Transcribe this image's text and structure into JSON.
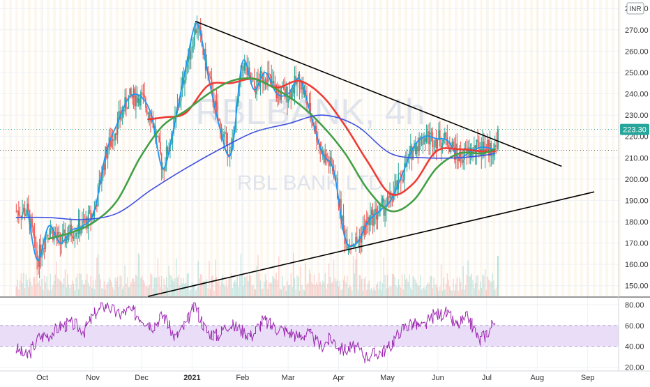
{
  "watermark": {
    "symbol": "RBLBANK, 4h",
    "name": "RBL BANK LTD"
  },
  "currency_badge": "INR",
  "colors": {
    "up": "#26a69a",
    "down": "#ef5350",
    "ma_fast": "#2196f3",
    "ma_mid": "#ef3b36",
    "ma_slow": "#43a047",
    "ma_long": "#3f51e0",
    "trendline": "#000000",
    "rsi_line": "#9c27b0",
    "rsi_band": "#e9ddf7",
    "last_price_bg": "#26a69a",
    "grid": "#eef1f5"
  },
  "chart_data": [
    {
      "type": "line",
      "title": "",
      "y_ticks": [
        "150.00",
        "160.00",
        "170.00",
        "180.00",
        "190.00",
        "200.00",
        "210.00",
        "220.00",
        "230.00",
        "240.00",
        "250.00",
        "260.00",
        "270.00",
        "280.00"
      ],
      "ylim": [
        145,
        284
      ],
      "x_ticks": [
        "Oct",
        "Nov",
        "Dec",
        "2021",
        "Feb",
        "Mar",
        "Apr",
        "May",
        "Jun",
        "Jul",
        "Aug",
        "Sep"
      ],
      "last_price_label": "223.30",
      "last_price": 223.3,
      "dotted_level": 213.5,
      "series": [
        {
          "key": "ma_fast",
          "color": "#2196f3",
          "x": [
            "2020-09-22",
            "2020-09-28",
            "2020-10-05",
            "2020-10-12",
            "2020-10-19",
            "2020-10-26",
            "2020-11-02",
            "2020-11-09",
            "2020-11-16",
            "2020-11-23",
            "2020-11-30",
            "2020-12-07",
            "2020-12-14",
            "2020-12-21",
            "2020-12-28",
            "2021-01-04",
            "2021-01-11",
            "2021-01-18",
            "2021-01-25",
            "2021-02-01",
            "2021-02-08",
            "2021-02-15",
            "2021-02-22",
            "2021-03-01",
            "2021-03-08",
            "2021-03-15",
            "2021-03-22",
            "2021-03-29",
            "2021-04-05",
            "2021-04-12",
            "2021-04-19",
            "2021-04-26",
            "2021-05-03",
            "2021-05-10",
            "2021-05-17",
            "2021-05-24",
            "2021-05-31",
            "2021-06-07",
            "2021-06-14",
            "2021-06-21",
            "2021-06-28",
            "2021-07-05"
          ],
          "y": [
            185,
            162,
            178,
            170,
            176,
            178,
            185,
            212,
            226,
            238,
            239,
            230,
            205,
            225,
            252,
            273,
            248,
            224,
            212,
            255,
            242,
            250,
            240,
            240,
            247,
            230,
            212,
            204,
            172,
            170,
            180,
            185,
            190,
            202,
            215,
            220,
            219,
            218,
            210,
            213,
            215,
            214
          ]
        },
        {
          "key": "ma_mid",
          "color": "#ef3b36",
          "x": [
            "2020-12-05",
            "2020-12-15",
            "2020-12-28",
            "2021-01-11",
            "2021-01-25",
            "2021-02-08",
            "2021-02-22",
            "2021-03-08",
            "2021-03-22",
            "2021-04-05",
            "2021-04-19",
            "2021-05-03",
            "2021-05-17",
            "2021-05-31",
            "2021-06-14",
            "2021-06-28",
            "2021-07-06"
          ],
          "y": [
            228,
            229,
            231,
            244,
            245,
            247,
            243,
            246,
            239,
            225,
            208,
            193,
            198,
            213,
            214,
            213,
            213
          ]
        },
        {
          "key": "ma_slow",
          "color": "#43a047",
          "x": [
            "2020-10-05",
            "2020-10-19",
            "2020-11-02",
            "2020-11-16",
            "2020-11-30",
            "2020-12-14",
            "2020-12-28",
            "2021-01-11",
            "2021-01-25",
            "2021-02-08",
            "2021-02-22",
            "2021-03-08",
            "2021-03-22",
            "2021-04-05",
            "2021-04-19",
            "2021-05-03",
            "2021-05-17",
            "2021-05-31",
            "2021-06-14",
            "2021-06-28",
            "2021-07-06"
          ],
          "y": [
            172,
            175,
            180,
            190,
            210,
            225,
            232,
            240,
            246,
            247,
            242,
            235,
            225,
            212,
            195,
            185,
            190,
            205,
            212,
            212,
            214
          ]
        },
        {
          "key": "ma_long",
          "color": "#3f51e0",
          "x": [
            "2020-09-15",
            "2020-10-05",
            "2020-10-26",
            "2020-11-16",
            "2020-12-07",
            "2020-12-28",
            "2021-01-18",
            "2021-02-08",
            "2021-03-01",
            "2021-03-22",
            "2021-04-12",
            "2021-05-03",
            "2021-05-24",
            "2021-06-14",
            "2021-06-28",
            "2021-07-06"
          ],
          "y": [
            182,
            182,
            181,
            184,
            195,
            205,
            214,
            222,
            226,
            230,
            225,
            212,
            210,
            210,
            211,
            212
          ]
        }
      ],
      "trendlines": [
        {
          "x": [
            "2021-01-03",
            "2021-08-16"
          ],
          "y": [
            274,
            206
          ]
        },
        {
          "x": [
            "2020-12-05",
            "2021-09-05"
          ],
          "y": [
            145,
            194
          ]
        }
      ]
    },
    {
      "type": "line",
      "title": "",
      "y_ticks": [
        "20.00",
        "40.00",
        "60.00",
        "80.00"
      ],
      "ylim": [
        17,
        84
      ],
      "band": [
        40,
        60
      ],
      "series": [
        {
          "key": "rsi",
          "color": "#9c27b0",
          "x": [
            "2020-09-15",
            "2020-09-22",
            "2020-09-29",
            "2020-10-06",
            "2020-10-13",
            "2020-10-20",
            "2020-10-27",
            "2020-11-03",
            "2020-11-10",
            "2020-11-17",
            "2020-11-24",
            "2020-12-01",
            "2020-12-08",
            "2020-12-15",
            "2020-12-22",
            "2020-12-29",
            "2021-01-03",
            "2021-01-10",
            "2021-01-17",
            "2021-01-24",
            "2021-01-31",
            "2021-02-07",
            "2021-02-14",
            "2021-02-21",
            "2021-02-28",
            "2021-03-07",
            "2021-03-14",
            "2021-03-21",
            "2021-03-28",
            "2021-04-04",
            "2021-04-11",
            "2021-04-18",
            "2021-04-25",
            "2021-05-02",
            "2021-05-09",
            "2021-05-16",
            "2021-05-23",
            "2021-05-30",
            "2021-06-06",
            "2021-06-13",
            "2021-06-20",
            "2021-06-27",
            "2021-07-04",
            "2021-07-07"
          ],
          "y": [
            38,
            30,
            48,
            52,
            60,
            62,
            55,
            72,
            80,
            70,
            75,
            68,
            60,
            70,
            48,
            62,
            80,
            55,
            50,
            62,
            56,
            50,
            65,
            58,
            55,
            50,
            52,
            40,
            48,
            36,
            40,
            30,
            33,
            38,
            55,
            62,
            58,
            70,
            72,
            60,
            68,
            45,
            58,
            68
          ]
        }
      ]
    }
  ]
}
